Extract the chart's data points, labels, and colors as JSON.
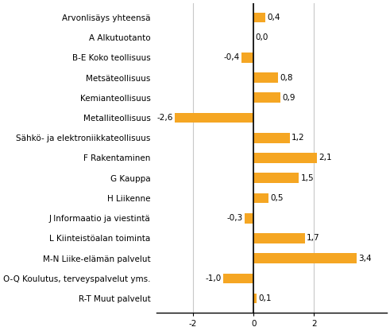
{
  "categories": [
    "Arvonlisäys yhteensä",
    "A Alkutuotanto",
    "B-E Koko teollisuus",
    "Metsäteollisuus",
    "Kemianteollisuus",
    "Metalliteollisuus",
    "Sähkö- ja elektroniikkateollisuus",
    "F Rakentaminen",
    "G Kauppa",
    "H Liikenne",
    "J Informaatio ja viestintä",
    "L Kiinteistöalan toiminta",
    "M-N Liike-elämän palvelut",
    "O-Q Koulutus, terveyspalvelut yms.",
    "R-T Muut palvelut"
  ],
  "values": [
    0.4,
    0.0,
    -0.4,
    0.8,
    0.9,
    -2.6,
    1.2,
    2.1,
    1.5,
    0.5,
    -0.3,
    1.7,
    3.4,
    -1.0,
    0.1
  ],
  "bar_color": "#F5A623",
  "label_color": "#000000",
  "background_color": "#ffffff",
  "xlim": [
    -3.2,
    4.4
  ],
  "xticks": [
    -2,
    0,
    2
  ],
  "grid_color": "#c8c8c8",
  "bar_height": 0.5,
  "value_fontsize": 7.5,
  "label_fontsize": 7.5
}
